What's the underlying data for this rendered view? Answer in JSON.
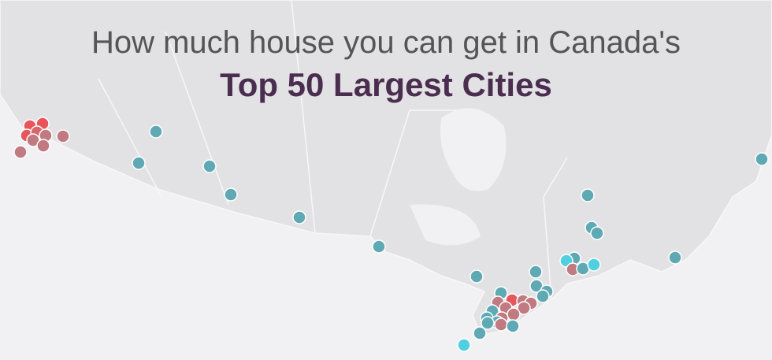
{
  "title": {
    "line1": "How much house you can get in Canada's",
    "line2": "Top 50 Largest Cities"
  }
}
